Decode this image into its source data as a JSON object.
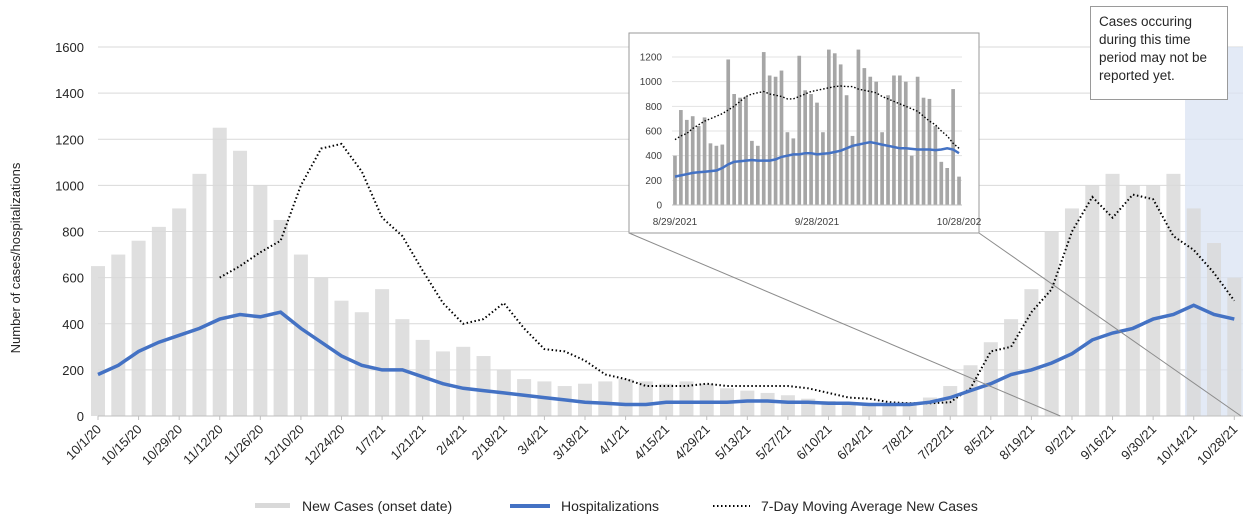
{
  "chart_data": [
    {
      "type": "bar+line",
      "ylabel": "Number of cases/hospitalizations",
      "ylim": [
        0,
        1600
      ],
      "yticks": [
        0,
        200,
        400,
        600,
        800,
        1000,
        1200,
        1400,
        1600
      ],
      "x_start": "2020-10-01",
      "x_end": "2021-10-31",
      "x_tick_labels": [
        "10/1/20",
        "10/15/20",
        "10/29/20",
        "11/12/20",
        "11/26/20",
        "12/10/20",
        "12/24/20",
        "1/7/21",
        "1/21/21",
        "2/4/21",
        "2/18/21",
        "3/4/21",
        "3/18/21",
        "4/1/21",
        "4/15/21",
        "4/29/21",
        "5/13/21",
        "5/27/21",
        "6/10/21",
        "6/24/21",
        "7/8/21",
        "7/22/21",
        "8/5/21",
        "8/19/21",
        "9/2/21",
        "9/16/21",
        "9/30/21",
        "10/14/21",
        "10/28/21"
      ],
      "grid": true,
      "legend_position": "bottom",
      "series": [
        {
          "name": "New Cases (onset date)",
          "kind": "bar",
          "color": "#d9d9d9",
          "x": [
            "2020-10-01",
            "2020-10-08",
            "2020-10-15",
            "2020-10-22",
            "2020-10-29",
            "2020-11-05",
            "2020-11-12",
            "2020-11-19",
            "2020-11-26",
            "2020-12-03",
            "2020-12-10",
            "2020-12-17",
            "2020-12-24",
            "2020-12-31",
            "2021-01-07",
            "2021-01-14",
            "2021-01-21",
            "2021-01-28",
            "2021-02-04",
            "2021-02-11",
            "2021-02-18",
            "2021-02-25",
            "2021-03-04",
            "2021-03-11",
            "2021-03-18",
            "2021-03-25",
            "2021-04-01",
            "2021-04-08",
            "2021-04-15",
            "2021-04-22",
            "2021-04-29",
            "2021-05-06",
            "2021-05-13",
            "2021-05-20",
            "2021-05-27",
            "2021-06-03",
            "2021-06-10",
            "2021-06-17",
            "2021-06-24",
            "2021-07-01",
            "2021-07-08",
            "2021-07-15",
            "2021-07-22",
            "2021-07-29",
            "2021-08-05",
            "2021-08-12",
            "2021-08-19",
            "2021-08-26",
            "2021-09-02",
            "2021-09-09",
            "2021-09-16",
            "2021-09-23",
            "2021-09-30",
            "2021-10-07",
            "2021-10-14",
            "2021-10-21",
            "2021-10-28"
          ],
          "y": [
            650,
            700,
            760,
            820,
            900,
            1050,
            1250,
            1150,
            1000,
            850,
            700,
            600,
            500,
            450,
            550,
            420,
            330,
            280,
            300,
            260,
            200,
            160,
            150,
            130,
            140,
            150,
            160,
            150,
            140,
            150,
            140,
            120,
            110,
            100,
            90,
            75,
            65,
            60,
            55,
            55,
            60,
            80,
            130,
            220,
            320,
            420,
            550,
            800,
            900,
            1000,
            1050,
            1000,
            1000,
            1050,
            900,
            750,
            600
          ]
        },
        {
          "name": "Hospitalizations",
          "kind": "line",
          "color": "#4472c4",
          "x": [
            "2020-10-01",
            "2020-10-08",
            "2020-10-15",
            "2020-10-22",
            "2020-10-29",
            "2020-11-05",
            "2020-11-12",
            "2020-11-19",
            "2020-11-26",
            "2020-12-03",
            "2020-12-10",
            "2020-12-17",
            "2020-12-24",
            "2020-12-31",
            "2021-01-07",
            "2021-01-14",
            "2021-01-21",
            "2021-01-28",
            "2021-02-04",
            "2021-02-11",
            "2021-02-18",
            "2021-02-25",
            "2021-03-04",
            "2021-03-11",
            "2021-03-18",
            "2021-03-25",
            "2021-04-01",
            "2021-04-08",
            "2021-04-15",
            "2021-04-22",
            "2021-04-29",
            "2021-05-06",
            "2021-05-13",
            "2021-05-20",
            "2021-05-27",
            "2021-06-03",
            "2021-06-10",
            "2021-06-17",
            "2021-06-24",
            "2021-07-01",
            "2021-07-08",
            "2021-07-15",
            "2021-07-22",
            "2021-07-29",
            "2021-08-05",
            "2021-08-12",
            "2021-08-19",
            "2021-08-26",
            "2021-09-02",
            "2021-09-09",
            "2021-09-16",
            "2021-09-23",
            "2021-09-30",
            "2021-10-07",
            "2021-10-14",
            "2021-10-21",
            "2021-10-28"
          ],
          "y": [
            180,
            220,
            280,
            320,
            350,
            380,
            420,
            440,
            430,
            450,
            380,
            320,
            260,
            220,
            200,
            200,
            170,
            140,
            120,
            110,
            100,
            90,
            80,
            70,
            60,
            55,
            50,
            50,
            60,
            60,
            60,
            60,
            65,
            65,
            60,
            60,
            55,
            55,
            50,
            50,
            50,
            60,
            80,
            110,
            140,
            180,
            200,
            230,
            270,
            330,
            360,
            380,
            420,
            440,
            480,
            440,
            420
          ]
        },
        {
          "name": "7-Day Moving Average New Cases",
          "kind": "line-dotted",
          "color": "#000000",
          "x": [
            "2020-10-01",
            "2020-10-08",
            "2020-10-15",
            "2020-10-22",
            "2020-10-29",
            "2020-11-05",
            "2020-11-12",
            "2020-11-19",
            "2020-11-26",
            "2020-12-03",
            "2020-12-10",
            "2020-12-17",
            "2020-12-24",
            "2020-12-31",
            "2021-01-07",
            "2021-01-14",
            "2021-01-21",
            "2021-01-28",
            "2021-02-04",
            "2021-02-11",
            "2021-02-18",
            "2021-02-25",
            "2021-03-04",
            "2021-03-11",
            "2021-03-18",
            "2021-03-25",
            "2021-04-01",
            "2021-04-08",
            "2021-04-15",
            "2021-04-22",
            "2021-04-29",
            "2021-05-06",
            "2021-05-13",
            "2021-05-20",
            "2021-05-27",
            "2021-06-03",
            "2021-06-10",
            "2021-06-17",
            "2021-06-24",
            "2021-07-01",
            "2021-07-08",
            "2021-07-15",
            "2021-07-22",
            "2021-07-29",
            "2021-08-05",
            "2021-08-12",
            "2021-08-19",
            "2021-08-26",
            "2021-09-02",
            "2021-09-09",
            "2021-09-16",
            "2021-09-23",
            "2021-09-30",
            "2021-10-07",
            "2021-10-14",
            "2021-10-21",
            "2021-10-28"
          ],
          "y": [
            null,
            null,
            null,
            null,
            null,
            null,
            600,
            650,
            710,
            760,
            1000,
            1160,
            1180,
            1060,
            860,
            780,
            630,
            490,
            400,
            420,
            490,
            380,
            290,
            280,
            240,
            180,
            160,
            130,
            130,
            130,
            140,
            130,
            130,
            130,
            130,
            120,
            100,
            80,
            75,
            60,
            55,
            55,
            60,
            120,
            280,
            300,
            450,
            550,
            800,
            950,
            860,
            960,
            940,
            780,
            720,
            620,
            500
          ]
        }
      ]
    },
    {
      "type": "bar+line",
      "ylim": [
        0,
        1200
      ],
      "yticks": [
        0,
        200,
        400,
        600,
        800,
        1000,
        1200
      ],
      "x_tick_labels": [
        "8/29/2021",
        "9/28/2021",
        "10/28/202"
      ],
      "grid": true,
      "series": [
        {
          "name": "New Cases (onset date)",
          "kind": "bar",
          "color": "#a6a6a6",
          "y": [
            400,
            770,
            690,
            720,
            640,
            710,
            500,
            480,
            490,
            1180,
            900,
            870,
            880,
            520,
            480,
            1240,
            1050,
            1040,
            1090,
            590,
            540,
            1210,
            930,
            900,
            830,
            590,
            1260,
            1230,
            1140,
            890,
            560,
            1260,
            1110,
            1040,
            1000,
            590,
            890,
            1050,
            1050,
            1000,
            400,
            1040,
            870,
            860,
            640,
            350,
            300,
            940,
            230
          ]
        },
        {
          "name": "Hospitalizations",
          "kind": "line",
          "color": "#4472c4",
          "y": [
            230,
            240,
            250,
            260,
            265,
            270,
            275,
            280,
            300,
            330,
            350,
            355,
            360,
            365,
            360,
            360,
            360,
            370,
            390,
            400,
            410,
            410,
            420,
            420,
            410,
            415,
            420,
            430,
            440,
            460,
            480,
            490,
            500,
            510,
            500,
            490,
            480,
            470,
            460,
            460,
            455,
            450,
            450,
            450,
            445,
            450,
            460,
            450,
            420
          ]
        },
        {
          "name": "7-Day Moving Average New Cases",
          "kind": "line-dotted",
          "color": "#000000",
          "y": [
            530,
            560,
            580,
            620,
            650,
            680,
            700,
            720,
            740,
            770,
            800,
            840,
            880,
            900,
            910,
            920,
            900,
            890,
            880,
            860,
            860,
            880,
            900,
            920,
            930,
            940,
            950,
            960,
            965,
            960,
            960,
            940,
            930,
            920,
            910,
            880,
            860,
            840,
            820,
            800,
            780,
            760,
            720,
            680,
            650,
            600,
            560,
            500,
            460
          ]
        }
      ]
    }
  ],
  "legend": {
    "cases_label": "New Cases (onset date)",
    "hosp_label": "Hospitalizations",
    "avg_label": "7-Day Moving Average New Cases"
  },
  "note": {
    "text": "Cases occuring during this time period may not be reported yet."
  },
  "colors": {
    "cases_bar": "#d9d9d9",
    "hospitalizations": "#4472c4",
    "moving_average": "#000000",
    "shade": "#dae3f3"
  }
}
